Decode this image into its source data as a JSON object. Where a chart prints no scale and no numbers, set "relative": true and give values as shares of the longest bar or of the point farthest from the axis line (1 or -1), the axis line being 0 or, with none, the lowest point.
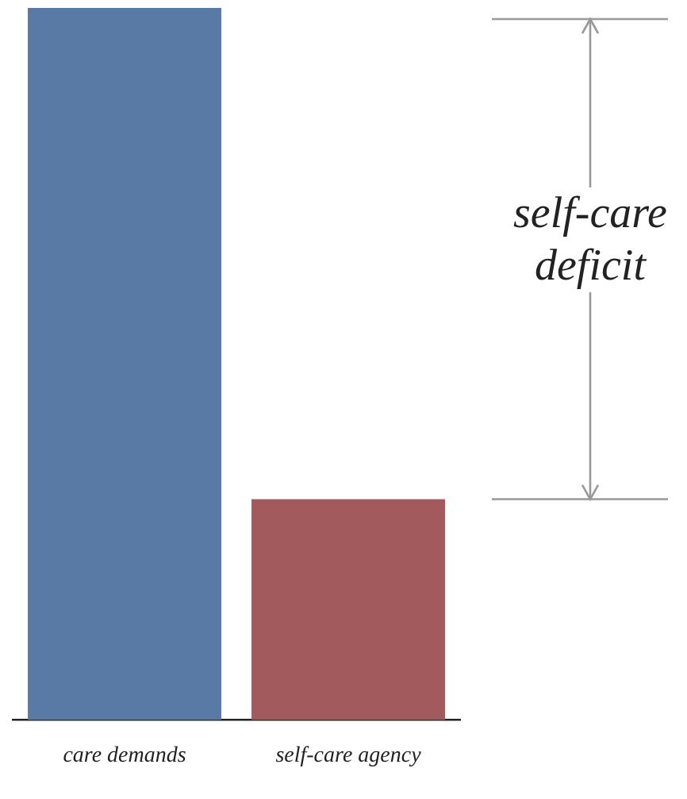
{
  "chart_data": {
    "type": "bar",
    "relative": true,
    "categories": [
      "care demands",
      "self-care agency"
    ],
    "values": [
      1,
      0.31
    ],
    "colors": [
      "#5a7aa6",
      "#a35a5c"
    ],
    "annotations": [
      "self-care deficit"
    ],
    "grid": false,
    "legend": false
  }
}
